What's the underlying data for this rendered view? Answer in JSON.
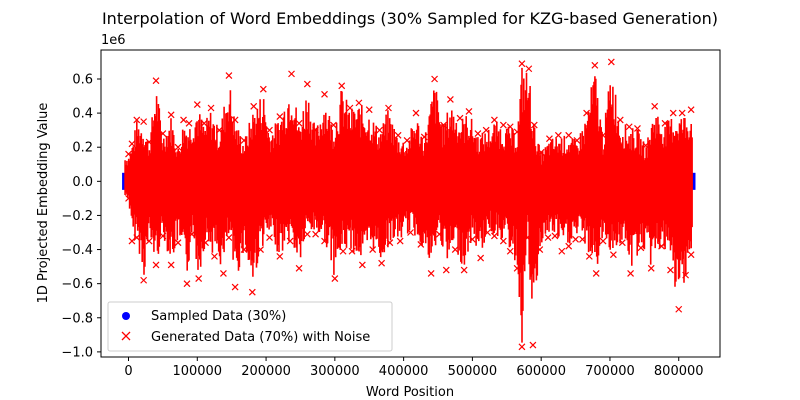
{
  "chart_data": {
    "type": "scatter",
    "title": "Interpolation of Word Embeddings (30% Sampled for KZG-based Generation)",
    "xlabel": "Word Position",
    "ylabel": "1D Projected Embedding Value",
    "y_offset_text": "1e6",
    "xlim": [
      -40000,
      860000
    ],
    "ylim": [
      -1.03,
      0.77
    ],
    "x_ticks": [
      0,
      100000,
      200000,
      300000,
      400000,
      500000,
      600000,
      700000,
      800000
    ],
    "x_tick_labels": [
      "0",
      "100000",
      "200000",
      "300000",
      "400000",
      "500000",
      "600000",
      "700000",
      "800000"
    ],
    "y_ticks": [
      -1.0,
      -0.8,
      -0.6,
      -0.4,
      -0.2,
      0.0,
      0.2,
      0.4,
      0.6
    ],
    "y_tick_labels": [
      "−1.0",
      "−0.8",
      "−0.6",
      "−0.4",
      "−0.2",
      "0.0",
      "0.2",
      "0.4",
      "0.6"
    ],
    "grid": false,
    "legend_position": "lower-left",
    "data_x_range": [
      -5000,
      820000
    ],
    "series": [
      {
        "name": "Sampled Data (30%)",
        "marker": "circle",
        "color": "#0000ff",
        "envelope": {
          "upper": 0.05,
          "lower": -0.05
        }
      },
      {
        "name": "Generated Data (70%) with Noise",
        "marker": "x",
        "color": "#ff0000",
        "envelope_upper": [
          [
            0,
            0.16
          ],
          [
            5000,
            0.22
          ],
          [
            12000,
            0.36
          ],
          [
            22000,
            0.35
          ],
          [
            30000,
            0.23
          ],
          [
            40000,
            0.59
          ],
          [
            50000,
            0.28
          ],
          [
            62000,
            0.39
          ],
          [
            72000,
            0.2
          ],
          [
            80000,
            0.36
          ],
          [
            88000,
            0.34
          ],
          [
            100000,
            0.45
          ],
          [
            110000,
            0.34
          ],
          [
            120000,
            0.43
          ],
          [
            132000,
            0.3
          ],
          [
            146000,
            0.62
          ],
          [
            155000,
            0.36
          ],
          [
            168000,
            0.24
          ],
          [
            182000,
            0.44
          ],
          [
            196000,
            0.54
          ],
          [
            205000,
            0.3
          ],
          [
            220000,
            0.38
          ],
          [
            237000,
            0.63
          ],
          [
            248000,
            0.34
          ],
          [
            260000,
            0.57
          ],
          [
            272000,
            0.3
          ],
          [
            285000,
            0.51
          ],
          [
            298000,
            0.33
          ],
          [
            310000,
            0.56
          ],
          [
            322000,
            0.43
          ],
          [
            335000,
            0.46
          ],
          [
            350000,
            0.42
          ],
          [
            365000,
            0.3
          ],
          [
            378000,
            0.43
          ],
          [
            392000,
            0.27
          ],
          [
            405000,
            0.24
          ],
          [
            418000,
            0.4
          ],
          [
            430000,
            0.26
          ],
          [
            445000,
            0.6
          ],
          [
            458000,
            0.33
          ],
          [
            468000,
            0.48
          ],
          [
            482000,
            0.37
          ],
          [
            495000,
            0.41
          ],
          [
            508000,
            0.28
          ],
          [
            520000,
            0.3
          ],
          [
            532000,
            0.36
          ],
          [
            545000,
            0.33
          ],
          [
            555000,
            0.32
          ],
          [
            565000,
            0.29
          ],
          [
            572000,
            0.69
          ],
          [
            582000,
            0.66
          ],
          [
            590000,
            0.33
          ],
          [
            600000,
            0.17
          ],
          [
            612000,
            0.25
          ],
          [
            625000,
            0.27
          ],
          [
            640000,
            0.27
          ],
          [
            652000,
            0.24
          ],
          [
            666000,
            0.4
          ],
          [
            678000,
            0.68
          ],
          [
            690000,
            0.27
          ],
          [
            702000,
            0.7
          ],
          [
            715000,
            0.36
          ],
          [
            728000,
            0.32
          ],
          [
            740000,
            0.31
          ],
          [
            752000,
            0.21
          ],
          [
            765000,
            0.44
          ],
          [
            780000,
            0.34
          ],
          [
            792000,
            0.4
          ],
          [
            805000,
            0.4
          ],
          [
            818000,
            0.42
          ]
        ],
        "envelope_lower": [
          [
            0,
            -0.1
          ],
          [
            5000,
            -0.35
          ],
          [
            12000,
            -0.33
          ],
          [
            22000,
            -0.58
          ],
          [
            30000,
            -0.35
          ],
          [
            40000,
            -0.49
          ],
          [
            50000,
            -0.32
          ],
          [
            62000,
            -0.49
          ],
          [
            72000,
            -0.36
          ],
          [
            85000,
            -0.6
          ],
          [
            92000,
            -0.31
          ],
          [
            102000,
            -0.57
          ],
          [
            112000,
            -0.36
          ],
          [
            125000,
            -0.44
          ],
          [
            138000,
            -0.54
          ],
          [
            146000,
            -0.33
          ],
          [
            155000,
            -0.62
          ],
          [
            168000,
            -0.4
          ],
          [
            180000,
            -0.65
          ],
          [
            192000,
            -0.4
          ],
          [
            205000,
            -0.33
          ],
          [
            220000,
            -0.44
          ],
          [
            235000,
            -0.35
          ],
          [
            248000,
            -0.51
          ],
          [
            260000,
            -0.31
          ],
          [
            272000,
            -0.31
          ],
          [
            285000,
            -0.35
          ],
          [
            300000,
            -0.57
          ],
          [
            312000,
            -0.41
          ],
          [
            325000,
            -0.41
          ],
          [
            340000,
            -0.49
          ],
          [
            355000,
            -0.4
          ],
          [
            368000,
            -0.48
          ],
          [
            380000,
            -0.36
          ],
          [
            395000,
            -0.35
          ],
          [
            410000,
            -0.3
          ],
          [
            425000,
            -0.37
          ],
          [
            440000,
            -0.54
          ],
          [
            452000,
            -0.31
          ],
          [
            462000,
            -0.52
          ],
          [
            475000,
            -0.4
          ],
          [
            488000,
            -0.52
          ],
          [
            500000,
            -0.34
          ],
          [
            512000,
            -0.45
          ],
          [
            522000,
            -0.3
          ],
          [
            532000,
            -0.32
          ],
          [
            545000,
            -0.35
          ],
          [
            555000,
            -0.41
          ],
          [
            565000,
            -0.51
          ],
          [
            572000,
            -0.97
          ],
          [
            580000,
            -0.33
          ],
          [
            588000,
            -0.96
          ],
          [
            598000,
            -0.4
          ],
          [
            610000,
            -0.33
          ],
          [
            620000,
            -0.32
          ],
          [
            630000,
            -0.41
          ],
          [
            640000,
            -0.38
          ],
          [
            650000,
            -0.34
          ],
          [
            660000,
            -0.34
          ],
          [
            670000,
            -0.44
          ],
          [
            680000,
            -0.54
          ],
          [
            690000,
            -0.35
          ],
          [
            705000,
            -0.43
          ],
          [
            718000,
            -0.36
          ],
          [
            730000,
            -0.54
          ],
          [
            745000,
            -0.39
          ],
          [
            760000,
            -0.51
          ],
          [
            775000,
            -0.38
          ],
          [
            788000,
            -0.52
          ],
          [
            800000,
            -0.75
          ],
          [
            810000,
            -0.55
          ],
          [
            818000,
            -0.43
          ]
        ]
      }
    ]
  }
}
